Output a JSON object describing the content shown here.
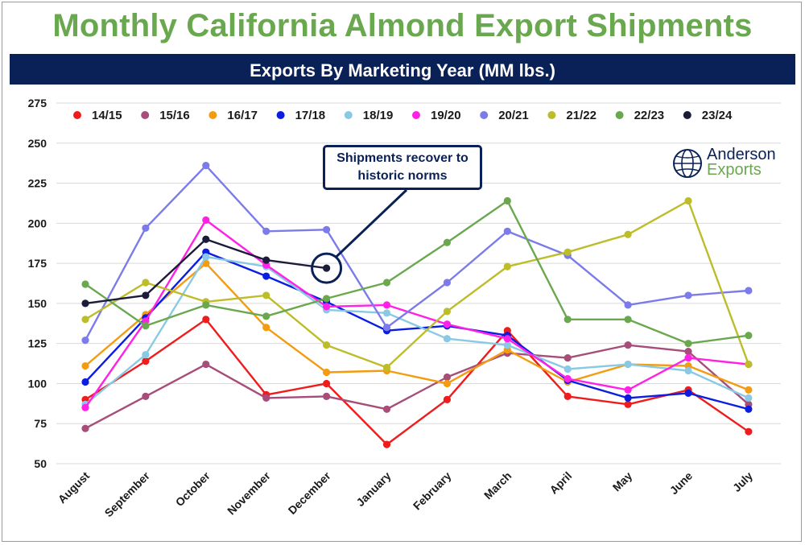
{
  "header": {
    "title": "Monthly California Almond Export Shipments",
    "subtitle": "Exports By Marketing Year  (MM lbs.)"
  },
  "annotation": {
    "line1": "Shipments recover to",
    "line2": "historic norms"
  },
  "logo": {
    "line1": "Anderson",
    "line2": "Exports",
    "icon": "globe-icon"
  },
  "chart_data": {
    "type": "line",
    "title": "",
    "xlabel": "",
    "ylabel": "",
    "ylim": [
      50,
      275
    ],
    "yticks": [
      50,
      75,
      100,
      125,
      150,
      175,
      200,
      225,
      250,
      275
    ],
    "grid": true,
    "legend_position": "top",
    "categories": [
      "August",
      "September",
      "October",
      "November",
      "December",
      "January",
      "February",
      "March",
      "April",
      "May",
      "June",
      "July"
    ],
    "series": [
      {
        "name": "14/15",
        "color": "#ee1c1c",
        "values": [
          90,
          114,
          140,
          93,
          100,
          62,
          90,
          133,
          92,
          87,
          96,
          70
        ]
      },
      {
        "name": "15/16",
        "color": "#a64d79",
        "values": [
          72,
          92,
          112,
          91,
          92,
          84,
          104,
          119,
          116,
          124,
          120,
          87
        ]
      },
      {
        "name": "16/17",
        "color": "#f39c12",
        "values": [
          111,
          143,
          175,
          135,
          107,
          108,
          100,
          121,
          101,
          112,
          111,
          96
        ]
      },
      {
        "name": "17/18",
        "color": "#0b1ee0",
        "values": [
          101,
          141,
          182,
          167,
          151,
          133,
          136,
          130,
          102,
          91,
          94,
          84
        ]
      },
      {
        "name": "18/19",
        "color": "#89c9e6",
        "values": [
          87,
          118,
          179,
          173,
          146,
          144,
          128,
          124,
          109,
          112,
          108,
          91
        ]
      },
      {
        "name": "19/20",
        "color": "#ff22e6",
        "values": [
          85,
          139,
          202,
          174,
          148,
          149,
          137,
          128,
          103,
          96,
          116,
          112
        ]
      },
      {
        "name": "20/21",
        "color": "#7b7bea",
        "values": [
          127,
          197,
          236,
          195,
          196,
          135,
          163,
          195,
          180,
          149,
          155,
          158
        ]
      },
      {
        "name": "21/22",
        "color": "#bdbd2a",
        "values": [
          140,
          163,
          151,
          155,
          124,
          110,
          145,
          173,
          182,
          193,
          214,
          112
        ]
      },
      {
        "name": "22/23",
        "color": "#6aa84f",
        "values": [
          162,
          136,
          149,
          142,
          153,
          163,
          188,
          214,
          140,
          140,
          125,
          130
        ]
      },
      {
        "name": "23/24",
        "color": "#1b1b3a",
        "values": [
          150,
          155,
          190,
          177,
          172,
          null,
          null,
          null,
          null,
          null,
          null,
          null
        ]
      }
    ]
  }
}
